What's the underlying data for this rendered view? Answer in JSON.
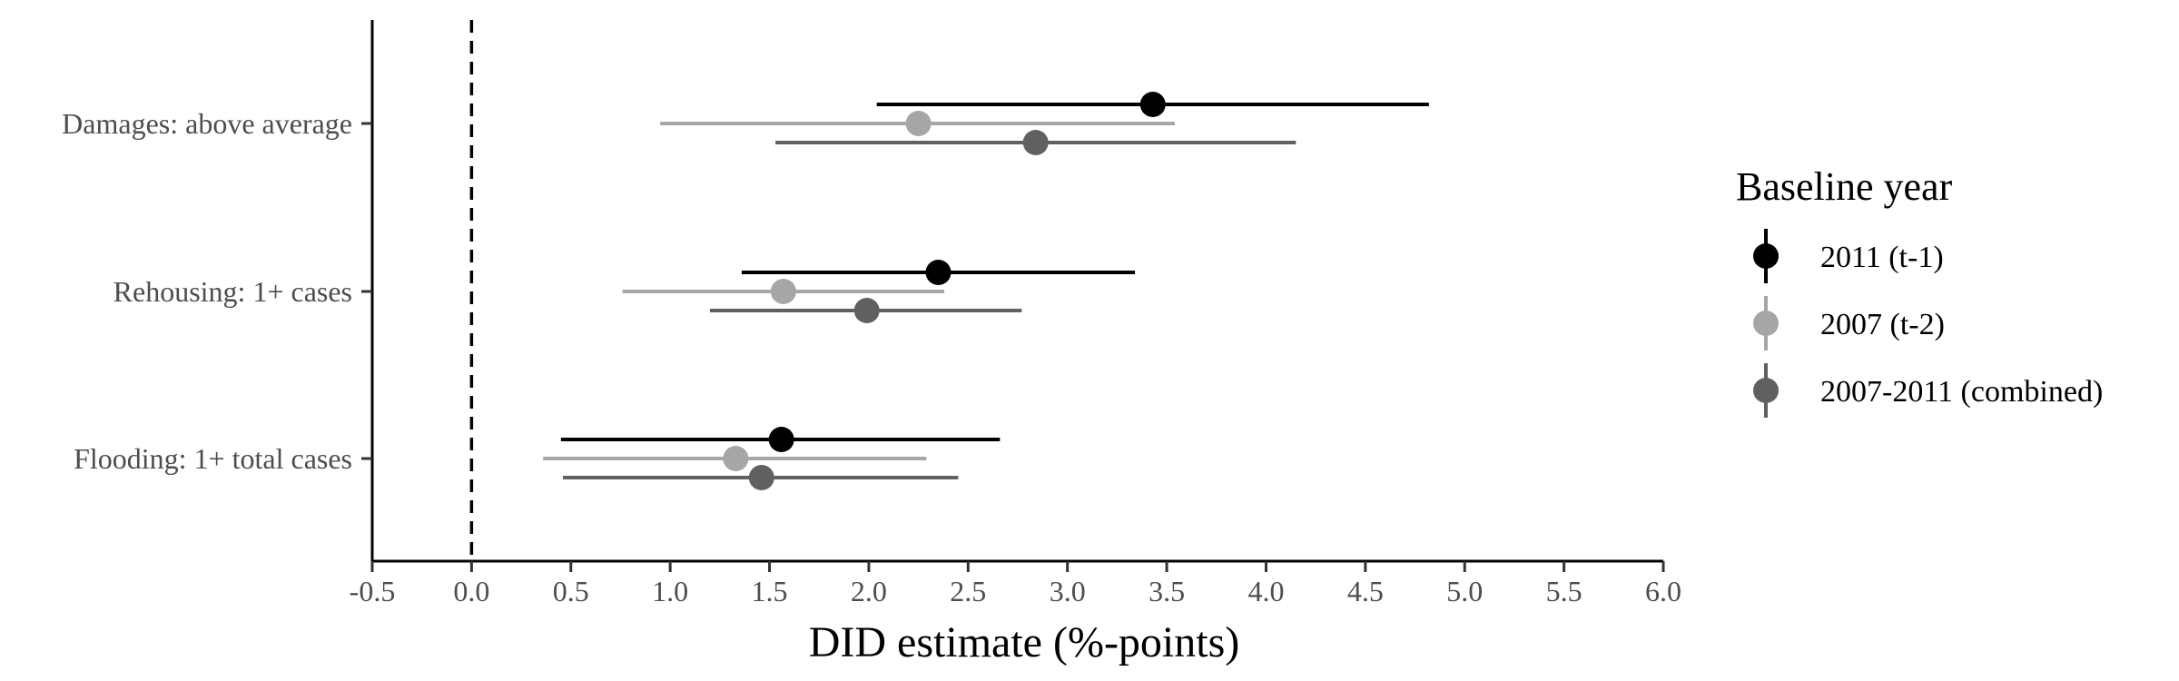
{
  "chart_data": {
    "type": "forest",
    "xlabel": "DID estimate (%-points)",
    "xlim": [
      -0.5,
      6.0
    ],
    "x_ticks": [
      -0.5,
      0.0,
      0.5,
      1.0,
      1.5,
      2.0,
      2.5,
      3.0,
      3.5,
      4.0,
      4.5,
      5.0,
      5.5,
      6.0
    ],
    "x_tick_labels": [
      "-0.5",
      "0.0",
      "0.5",
      "1.0",
      "1.5",
      "2.0",
      "2.5",
      "3.0",
      "3.5",
      "4.0",
      "4.5",
      "5.0",
      "5.5",
      "6.0"
    ],
    "reference_line": {
      "x": 0,
      "style": "dashed"
    },
    "categories": [
      "Damages: above average",
      "Rehousing: 1+ cases",
      "Flooding: 1+ total cases"
    ],
    "legend_title": "Baseline year",
    "legend_position": "right",
    "grid": false,
    "series": [
      {
        "name": "2011 (t-1)",
        "color": "#000000",
        "estimates": [
          3.43,
          2.35,
          1.56
        ],
        "ci_low": [
          2.04,
          1.36,
          0.45
        ],
        "ci_high": [
          4.82,
          3.34,
          2.66
        ]
      },
      {
        "name": "2007 (t-2)",
        "color": "#a6a6a6",
        "estimates": [
          2.25,
          1.57,
          1.33
        ],
        "ci_low": [
          0.95,
          0.76,
          0.36
        ],
        "ci_high": [
          3.54,
          2.38,
          2.29
        ]
      },
      {
        "name": "2007-2011 (combined)",
        "color": "#606060",
        "estimates": [
          2.84,
          1.99,
          1.46
        ],
        "ci_low": [
          1.53,
          1.2,
          0.46
        ],
        "ci_high": [
          4.15,
          2.77,
          2.45
        ]
      }
    ]
  }
}
